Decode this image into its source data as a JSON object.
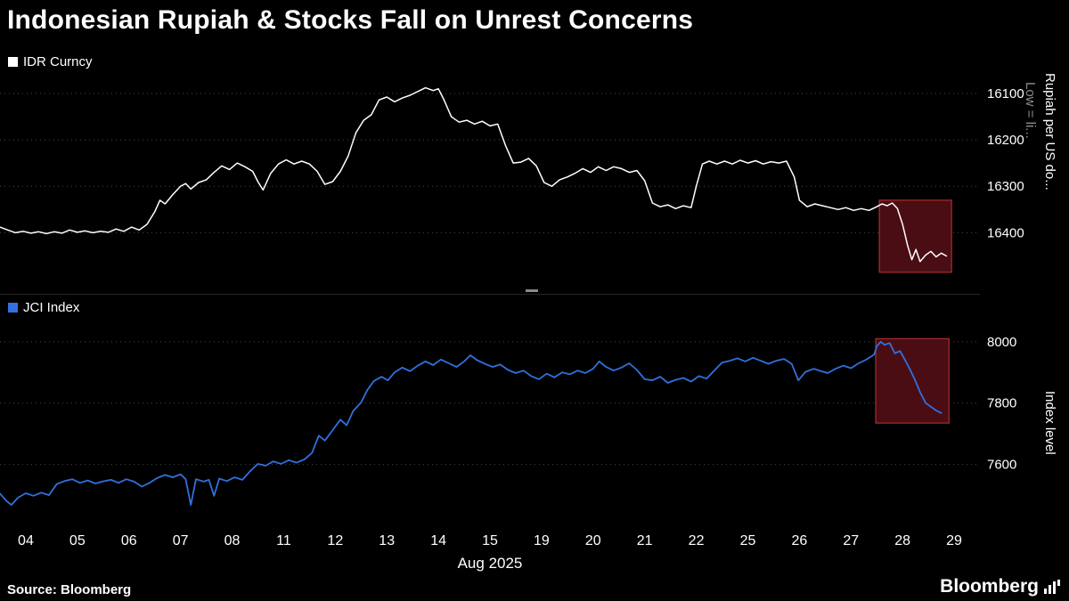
{
  "title": "Indonesian Rupiah & Stocks Fall on Unrest Concerns",
  "x_axis": {
    "labels": [
      "04",
      "05",
      "06",
      "07",
      "08",
      "11",
      "12",
      "13",
      "14",
      "15",
      "19",
      "20",
      "21",
      "22",
      "25",
      "26",
      "27",
      "28",
      "29"
    ],
    "title": "Aug 2025"
  },
  "footer": {
    "source": "Source: Bloomberg",
    "logo": "Bloomberg"
  },
  "colors": {
    "background": "#000000",
    "grid": "#4a4a4a",
    "tick_text": "#ffffff",
    "highlight_fill": "#4a0d14",
    "highlight_stroke": "#9e2b2b",
    "note_gray": "#8f8f8f"
  },
  "chart_data": [
    {
      "id": "idr",
      "type": "line",
      "legend": "IDR Curncy",
      "color": "#ffffff",
      "axis_label": "Rupiah per US do...",
      "axis_note": "Low = li...",
      "y_ticks": [
        16100,
        16200,
        16300,
        16400
      ],
      "y_domain": [
        16060,
        16520
      ],
      "inverted_axis": true,
      "x_range": [
        0,
        19
      ],
      "grid": true,
      "legend_position": "top-left",
      "highlight": {
        "x0": 17.05,
        "x1": 18.45,
        "y_top": 16330,
        "y_bottom": 16485
      },
      "points": [
        [
          0.0,
          16388
        ],
        [
          0.15,
          16394
        ],
        [
          0.3,
          16400
        ],
        [
          0.45,
          16397
        ],
        [
          0.6,
          16401
        ],
        [
          0.75,
          16398
        ],
        [
          0.9,
          16402
        ],
        [
          1.05,
          16398
        ],
        [
          1.2,
          16401
        ],
        [
          1.35,
          16394
        ],
        [
          1.5,
          16399
        ],
        [
          1.65,
          16396
        ],
        [
          1.8,
          16400
        ],
        [
          1.95,
          16397
        ],
        [
          2.1,
          16399
        ],
        [
          2.25,
          16392
        ],
        [
          2.4,
          16397
        ],
        [
          2.55,
          16388
        ],
        [
          2.7,
          16394
        ],
        [
          2.85,
          16382
        ],
        [
          3.0,
          16355
        ],
        [
          3.1,
          16330
        ],
        [
          3.2,
          16338
        ],
        [
          3.35,
          16318
        ],
        [
          3.5,
          16300
        ],
        [
          3.6,
          16294
        ],
        [
          3.7,
          16306
        ],
        [
          3.85,
          16292
        ],
        [
          4.0,
          16286
        ],
        [
          4.15,
          16270
        ],
        [
          4.3,
          16256
        ],
        [
          4.45,
          16264
        ],
        [
          4.6,
          16250
        ],
        [
          4.75,
          16258
        ],
        [
          4.9,
          16268
        ],
        [
          5.0,
          16290
        ],
        [
          5.1,
          16308
        ],
        [
          5.25,
          16272
        ],
        [
          5.4,
          16252
        ],
        [
          5.55,
          16243
        ],
        [
          5.7,
          16252
        ],
        [
          5.85,
          16246
        ],
        [
          6.0,
          16252
        ],
        [
          6.15,
          16268
        ],
        [
          6.3,
          16296
        ],
        [
          6.45,
          16290
        ],
        [
          6.6,
          16268
        ],
        [
          6.75,
          16235
        ],
        [
          6.9,
          16185
        ],
        [
          7.05,
          16158
        ],
        [
          7.2,
          16146
        ],
        [
          7.35,
          16114
        ],
        [
          7.5,
          16108
        ],
        [
          7.65,
          16118
        ],
        [
          7.8,
          16110
        ],
        [
          7.95,
          16104
        ],
        [
          8.1,
          16096
        ],
        [
          8.25,
          16088
        ],
        [
          8.4,
          16094
        ],
        [
          8.5,
          16090
        ],
        [
          8.6,
          16112
        ],
        [
          8.75,
          16150
        ],
        [
          8.9,
          16162
        ],
        [
          9.05,
          16158
        ],
        [
          9.2,
          16166
        ],
        [
          9.35,
          16160
        ],
        [
          9.5,
          16170
        ],
        [
          9.65,
          16166
        ],
        [
          9.8,
          16212
        ],
        [
          9.95,
          16250
        ],
        [
          10.1,
          16248
        ],
        [
          10.25,
          16240
        ],
        [
          10.4,
          16256
        ],
        [
          10.55,
          16292
        ],
        [
          10.7,
          16300
        ],
        [
          10.85,
          16286
        ],
        [
          11.0,
          16280
        ],
        [
          11.15,
          16272
        ],
        [
          11.3,
          16262
        ],
        [
          11.45,
          16270
        ],
        [
          11.6,
          16258
        ],
        [
          11.75,
          16266
        ],
        [
          11.9,
          16258
        ],
        [
          12.05,
          16262
        ],
        [
          12.2,
          16270
        ],
        [
          12.35,
          16266
        ],
        [
          12.5,
          16288
        ],
        [
          12.65,
          16336
        ],
        [
          12.8,
          16344
        ],
        [
          12.95,
          16340
        ],
        [
          13.1,
          16348
        ],
        [
          13.25,
          16342
        ],
        [
          13.4,
          16346
        ],
        [
          13.5,
          16300
        ],
        [
          13.62,
          16252
        ],
        [
          13.75,
          16246
        ],
        [
          13.9,
          16252
        ],
        [
          14.05,
          16246
        ],
        [
          14.2,
          16252
        ],
        [
          14.35,
          16244
        ],
        [
          14.5,
          16250
        ],
        [
          14.65,
          16245
        ],
        [
          14.8,
          16252
        ],
        [
          14.95,
          16247
        ],
        [
          15.1,
          16250
        ],
        [
          15.25,
          16246
        ],
        [
          15.4,
          16280
        ],
        [
          15.5,
          16330
        ],
        [
          15.65,
          16344
        ],
        [
          15.8,
          16338
        ],
        [
          15.95,
          16342
        ],
        [
          16.1,
          16346
        ],
        [
          16.25,
          16350
        ],
        [
          16.4,
          16346
        ],
        [
          16.55,
          16352
        ],
        [
          16.7,
          16348
        ],
        [
          16.85,
          16352
        ],
        [
          17.0,
          16344
        ],
        [
          17.1,
          16338
        ],
        [
          17.2,
          16342
        ],
        [
          17.3,
          16336
        ],
        [
          17.4,
          16348
        ],
        [
          17.5,
          16382
        ],
        [
          17.6,
          16428
        ],
        [
          17.68,
          16458
        ],
        [
          17.76,
          16436
        ],
        [
          17.84,
          16462
        ],
        [
          17.95,
          16448
        ],
        [
          18.05,
          16440
        ],
        [
          18.15,
          16452
        ],
        [
          18.25,
          16444
        ],
        [
          18.35,
          16450
        ]
      ]
    },
    {
      "id": "jci",
      "type": "line",
      "legend": "JCI Index",
      "color": "#3170dd",
      "axis_label": "Index level",
      "y_ticks": [
        7600,
        7800,
        8000
      ],
      "y_domain": [
        8075,
        7390
      ],
      "x_range": [
        0,
        19
      ],
      "grid": true,
      "legend_position": "top-left",
      "highlight": {
        "x0": 16.98,
        "x1": 18.4,
        "y_top": 8010,
        "y_bottom": 7735
      },
      "points": [
        [
          0.0,
          7505
        ],
        [
          0.12,
          7482
        ],
        [
          0.22,
          7468
        ],
        [
          0.35,
          7492
        ],
        [
          0.5,
          7506
        ],
        [
          0.65,
          7498
        ],
        [
          0.8,
          7508
        ],
        [
          0.95,
          7500
        ],
        [
          1.1,
          7536
        ],
        [
          1.25,
          7546
        ],
        [
          1.4,
          7552
        ],
        [
          1.55,
          7540
        ],
        [
          1.7,
          7548
        ],
        [
          1.85,
          7538
        ],
        [
          2.0,
          7545
        ],
        [
          2.15,
          7550
        ],
        [
          2.3,
          7540
        ],
        [
          2.45,
          7552
        ],
        [
          2.6,
          7544
        ],
        [
          2.75,
          7528
        ],
        [
          2.9,
          7540
        ],
        [
          3.05,
          7556
        ],
        [
          3.2,
          7566
        ],
        [
          3.35,
          7558
        ],
        [
          3.5,
          7568
        ],
        [
          3.6,
          7552
        ],
        [
          3.7,
          7468
        ],
        [
          3.8,
          7552
        ],
        [
          3.95,
          7544
        ],
        [
          4.05,
          7550
        ],
        [
          4.15,
          7498
        ],
        [
          4.25,
          7554
        ],
        [
          4.4,
          7546
        ],
        [
          4.55,
          7558
        ],
        [
          4.7,
          7550
        ],
        [
          4.85,
          7578
        ],
        [
          5.0,
          7602
        ],
        [
          5.15,
          7596
        ],
        [
          5.3,
          7610
        ],
        [
          5.45,
          7602
        ],
        [
          5.6,
          7614
        ],
        [
          5.75,
          7606
        ],
        [
          5.9,
          7616
        ],
        [
          6.05,
          7638
        ],
        [
          6.18,
          7694
        ],
        [
          6.3,
          7678
        ],
        [
          6.45,
          7712
        ],
        [
          6.6,
          7746
        ],
        [
          6.72,
          7728
        ],
        [
          6.85,
          7775
        ],
        [
          7.0,
          7802
        ],
        [
          7.12,
          7842
        ],
        [
          7.25,
          7872
        ],
        [
          7.4,
          7886
        ],
        [
          7.52,
          7874
        ],
        [
          7.65,
          7900
        ],
        [
          7.8,
          7916
        ],
        [
          7.95,
          7904
        ],
        [
          8.1,
          7922
        ],
        [
          8.25,
          7936
        ],
        [
          8.4,
          7924
        ],
        [
          8.55,
          7942
        ],
        [
          8.7,
          7930
        ],
        [
          8.85,
          7918
        ],
        [
          9.0,
          7936
        ],
        [
          9.12,
          7956
        ],
        [
          9.25,
          7940
        ],
        [
          9.4,
          7928
        ],
        [
          9.55,
          7918
        ],
        [
          9.7,
          7926
        ],
        [
          9.85,
          7908
        ],
        [
          10.0,
          7898
        ],
        [
          10.15,
          7906
        ],
        [
          10.3,
          7888
        ],
        [
          10.45,
          7878
        ],
        [
          10.6,
          7896
        ],
        [
          10.75,
          7884
        ],
        [
          10.9,
          7900
        ],
        [
          11.05,
          7894
        ],
        [
          11.2,
          7906
        ],
        [
          11.35,
          7898
        ],
        [
          11.5,
          7912
        ],
        [
          11.62,
          7936
        ],
        [
          11.75,
          7918
        ],
        [
          11.9,
          7906
        ],
        [
          12.05,
          7916
        ],
        [
          12.2,
          7930
        ],
        [
          12.35,
          7908
        ],
        [
          12.5,
          7878
        ],
        [
          12.65,
          7874
        ],
        [
          12.8,
          7886
        ],
        [
          12.95,
          7866
        ],
        [
          13.1,
          7876
        ],
        [
          13.25,
          7882
        ],
        [
          13.4,
          7870
        ],
        [
          13.55,
          7888
        ],
        [
          13.7,
          7880
        ],
        [
          13.85,
          7906
        ],
        [
          14.0,
          7932
        ],
        [
          14.15,
          7938
        ],
        [
          14.3,
          7946
        ],
        [
          14.45,
          7936
        ],
        [
          14.6,
          7948
        ],
        [
          14.75,
          7938
        ],
        [
          14.9,
          7928
        ],
        [
          15.05,
          7938
        ],
        [
          15.2,
          7944
        ],
        [
          15.35,
          7928
        ],
        [
          15.48,
          7874
        ],
        [
          15.62,
          7902
        ],
        [
          15.78,
          7912
        ],
        [
          15.92,
          7904
        ],
        [
          16.05,
          7898
        ],
        [
          16.2,
          7912
        ],
        [
          16.35,
          7922
        ],
        [
          16.5,
          7914
        ],
        [
          16.65,
          7930
        ],
        [
          16.8,
          7942
        ],
        [
          16.95,
          7958
        ],
        [
          17.0,
          7986
        ],
        [
          17.08,
          8000
        ],
        [
          17.15,
          7990
        ],
        [
          17.25,
          7996
        ],
        [
          17.35,
          7962
        ],
        [
          17.45,
          7970
        ],
        [
          17.55,
          7940
        ],
        [
          17.65,
          7908
        ],
        [
          17.75,
          7872
        ],
        [
          17.85,
          7832
        ],
        [
          17.95,
          7800
        ],
        [
          18.05,
          7788
        ],
        [
          18.15,
          7776
        ],
        [
          18.25,
          7768
        ]
      ]
    }
  ]
}
